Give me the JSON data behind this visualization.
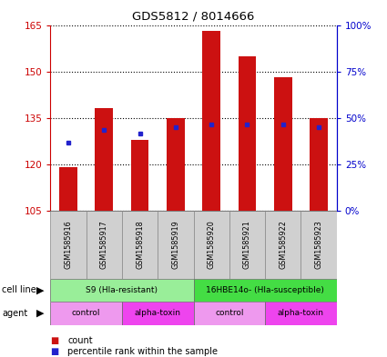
{
  "title": "GDS5812 / 8014666",
  "samples": [
    "GSM1585916",
    "GSM1585917",
    "GSM1585918",
    "GSM1585919",
    "GSM1585920",
    "GSM1585921",
    "GSM1585922",
    "GSM1585923"
  ],
  "count_values": [
    119,
    138,
    128,
    135,
    163,
    155,
    148,
    135
  ],
  "percentile_values": [
    127,
    131,
    130,
    132,
    133,
    133,
    133,
    132
  ],
  "y_min": 105,
  "y_max": 165,
  "y_ticks": [
    105,
    120,
    135,
    150,
    165
  ],
  "right_y_ticks": [
    0,
    25,
    50,
    75,
    100
  ],
  "bar_color": "#cc1111",
  "percentile_color": "#2222cc",
  "cell_line_groups": [
    {
      "label": "S9 (Hla-resistant)",
      "start": 0,
      "end": 4,
      "color": "#99ee99"
    },
    {
      "label": "16HBE14o- (Hla-susceptible)",
      "start": 4,
      "end": 8,
      "color": "#44dd44"
    }
  ],
  "agent_groups": [
    {
      "label": "control",
      "start": 0,
      "end": 2,
      "color": "#ee99ee"
    },
    {
      "label": "alpha-toxin",
      "start": 2,
      "end": 4,
      "color": "#ee44ee"
    },
    {
      "label": "control",
      "start": 4,
      "end": 6,
      "color": "#ee99ee"
    },
    {
      "label": "alpha-toxin",
      "start": 6,
      "end": 8,
      "color": "#ee44ee"
    }
  ],
  "sample_box_color": "#d0d0d0",
  "legend_count_label": "count",
  "legend_percentile_label": "percentile rank within the sample",
  "cell_line_label": "cell line",
  "agent_label": "agent",
  "right_axis_color": "#0000cc",
  "tick_label_color_left": "#cc0000",
  "tick_label_color_right": "#0000cc"
}
